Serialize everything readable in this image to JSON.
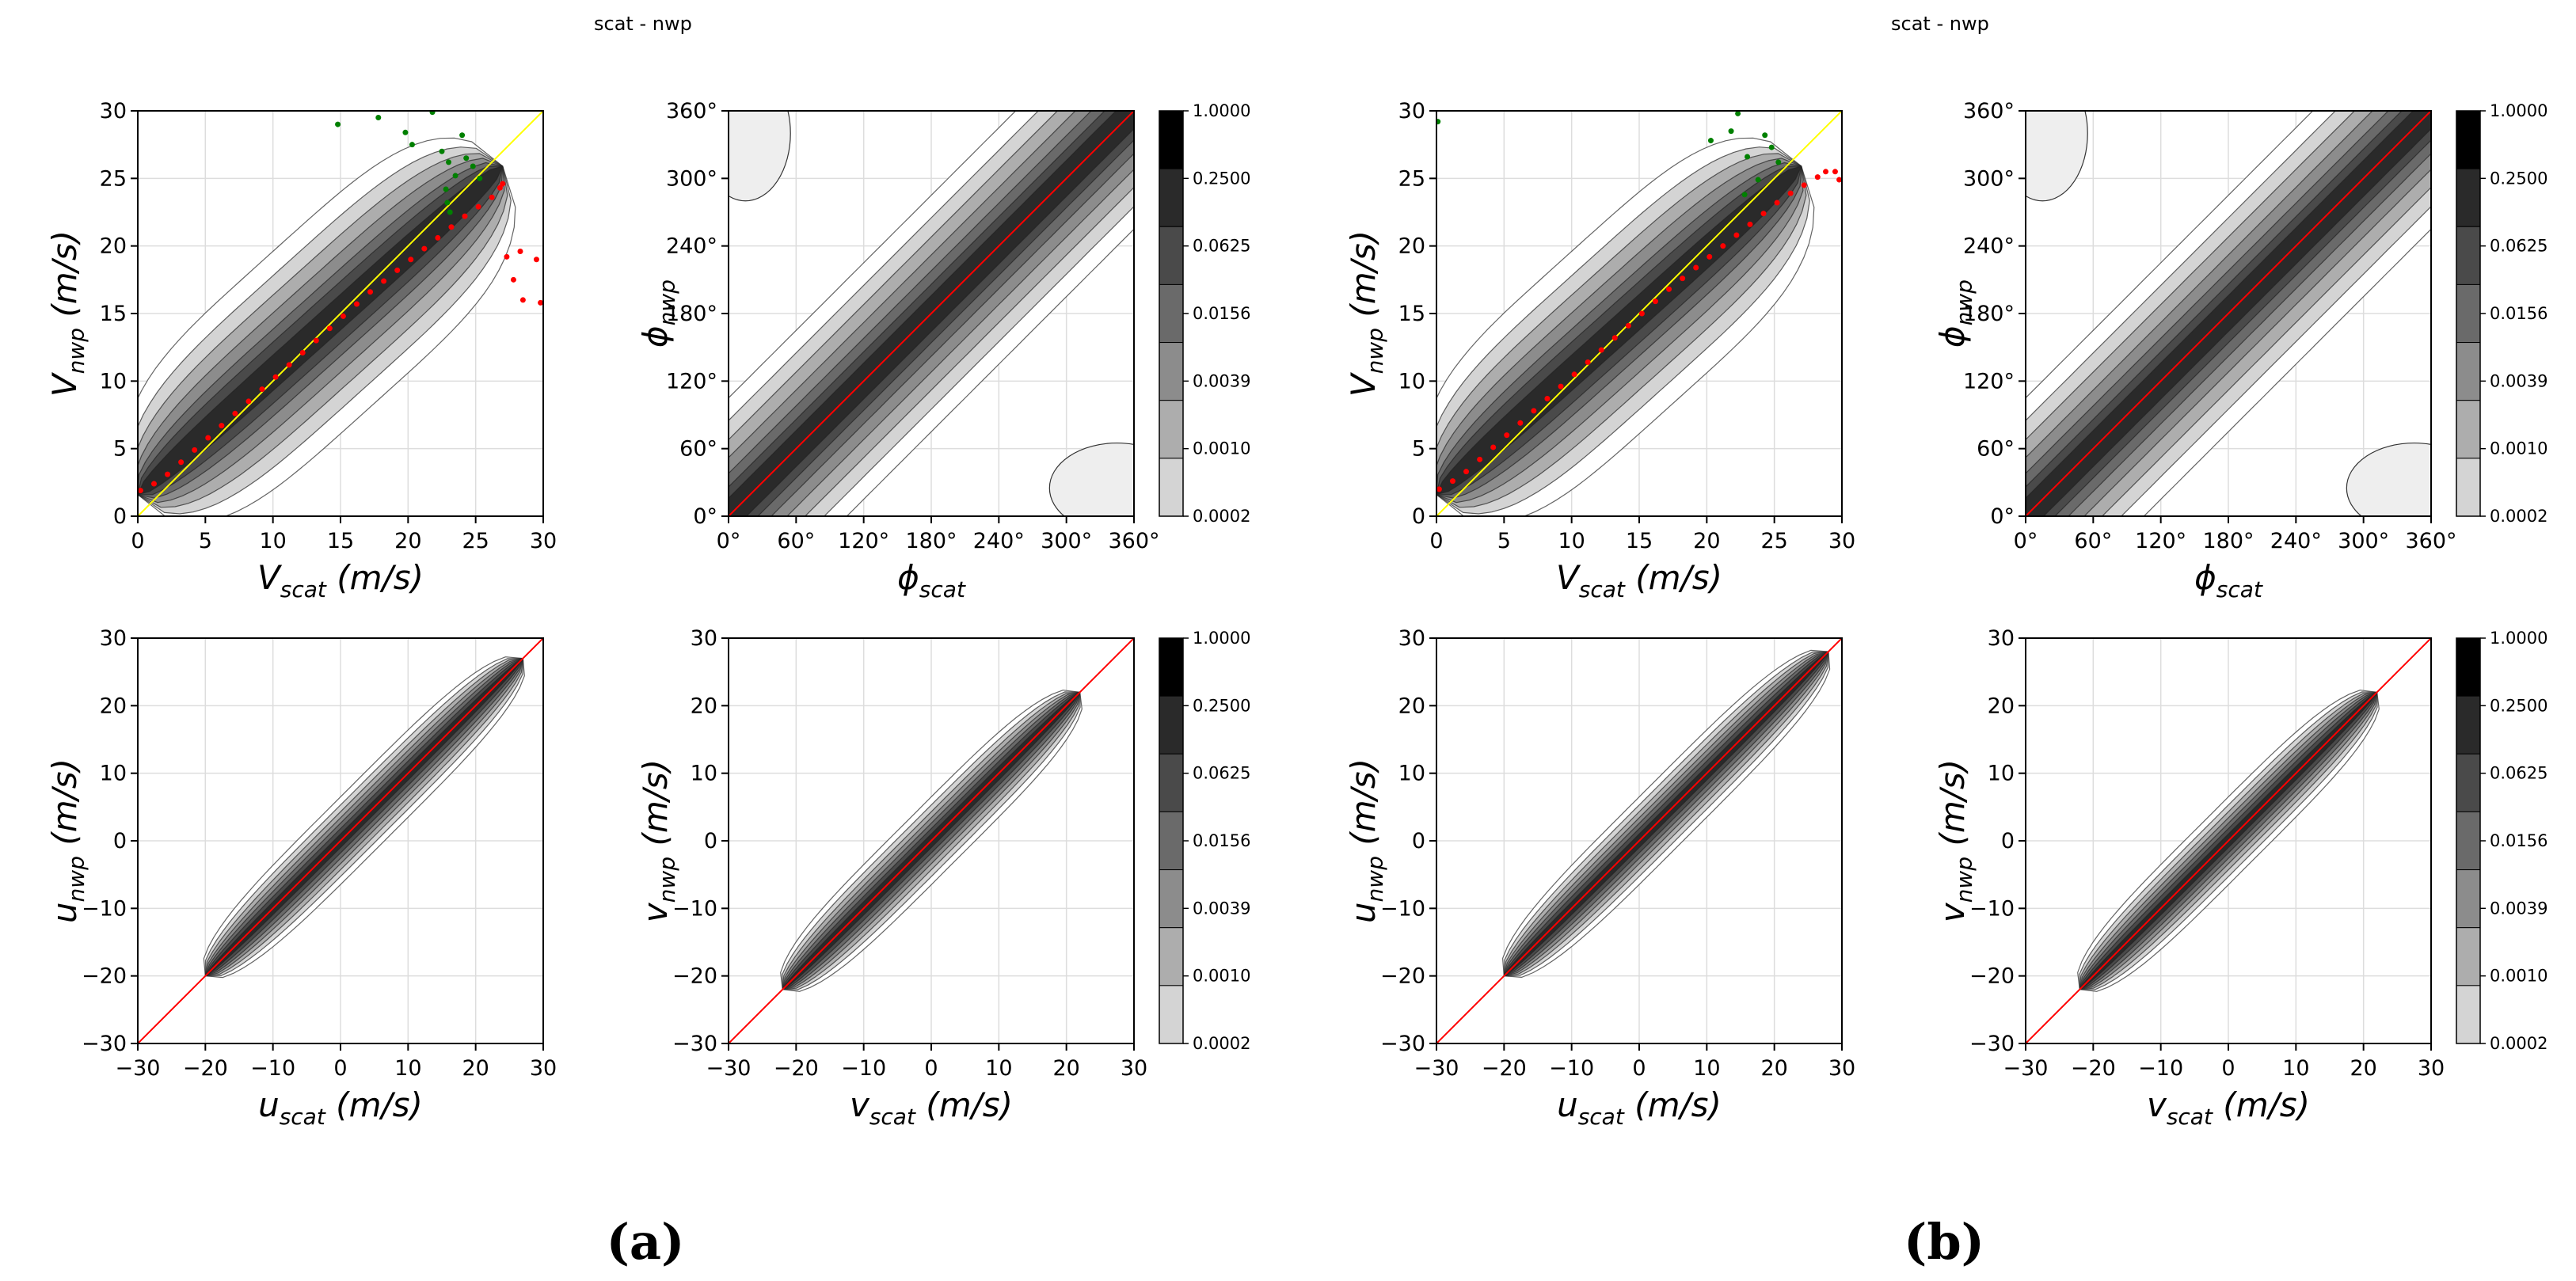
{
  "figures": [
    {
      "title": "scat - nwp",
      "panel_label": "(a)"
    },
    {
      "title": "scat - nwp",
      "panel_label": "(b)"
    }
  ],
  "colorbar": {
    "levels": [
      "1.0000",
      "0.2500",
      "0.0625",
      "0.0156",
      "0.0039",
      "0.0010",
      "0.0002"
    ],
    "shades": [
      "#000000",
      "#2a2a2a",
      "#4a4a4a",
      "#6a6a6a",
      "#8c8c8c",
      "#adadad",
      "#d4d4d4",
      "#ffffff"
    ]
  },
  "colors": {
    "identity_line": "#ff0000",
    "diag_line": "#ffff00",
    "green_dots": "#008000",
    "red_dots": "#ff0000"
  },
  "chart_data": [
    {
      "id": "a-speed",
      "type": "heatmap",
      "kind": "speed",
      "title": "",
      "xlabel_main": "V",
      "xlabel_sub": "scat",
      "xlabel_unit": " (m/s)",
      "ylabel_main": "V",
      "ylabel_sub": "nwp",
      "ylabel_unit": " (m/s)",
      "xlim": [
        0,
        30
      ],
      "ylim": [
        0,
        30
      ],
      "xticks": [
        "0",
        "5",
        "10",
        "15",
        "20",
        "25",
        "30"
      ],
      "yticks": [
        "0",
        "5",
        "10",
        "15",
        "20",
        "25",
        "30"
      ],
      "green_points": [
        [
          14.8,
          29.0
        ],
        [
          17.8,
          29.5
        ],
        [
          19.8,
          28.4
        ],
        [
          20.3,
          27.5
        ],
        [
          21.8,
          29.9
        ],
        [
          22.5,
          27.0
        ],
        [
          23.0,
          26.2
        ],
        [
          23.5,
          25.2
        ],
        [
          24.0,
          28.2
        ],
        [
          24.3,
          26.5
        ],
        [
          24.8,
          25.9
        ],
        [
          25.3,
          25.0
        ],
        [
          22.8,
          24.2
        ],
        [
          22.9,
          23.2
        ],
        [
          23.1,
          22.5
        ]
      ],
      "red_points": [
        [
          0.2,
          1.9
        ],
        [
          1.2,
          2.4
        ],
        [
          2.2,
          3.1
        ],
        [
          3.2,
          4.0
        ],
        [
          4.2,
          4.9
        ],
        [
          5.2,
          5.8
        ],
        [
          6.2,
          6.7
        ],
        [
          7.2,
          7.6
        ],
        [
          8.2,
          8.5
        ],
        [
          9.2,
          9.4
        ],
        [
          10.2,
          10.3
        ],
        [
          11.2,
          11.2
        ],
        [
          12.2,
          12.1
        ],
        [
          13.2,
          13.0
        ],
        [
          14.2,
          13.9
        ],
        [
          15.2,
          14.8
        ],
        [
          16.2,
          15.7
        ],
        [
          17.2,
          16.6
        ],
        [
          18.2,
          17.4
        ],
        [
          19.2,
          18.2
        ],
        [
          20.2,
          19.0
        ],
        [
          21.2,
          19.8
        ],
        [
          22.2,
          20.6
        ],
        [
          23.2,
          21.4
        ],
        [
          24.2,
          22.2
        ],
        [
          25.2,
          22.9
        ],
        [
          26.2,
          23.6
        ],
        [
          26.8,
          24.3
        ],
        [
          27.0,
          24.6
        ],
        [
          27.3,
          19.2
        ],
        [
          27.8,
          17.5
        ],
        [
          28.3,
          19.6
        ],
        [
          28.5,
          16.0
        ],
        [
          29.5,
          19.0
        ],
        [
          29.8,
          15.8
        ]
      ],
      "colorbar": false
    },
    {
      "id": "a-dir",
      "type": "heatmap",
      "kind": "direction",
      "title": "",
      "xlabel_main": "ϕ",
      "xlabel_sub": "scat",
      "xlabel_unit": "",
      "ylabel_main": "ϕ",
      "ylabel_sub": "nwp",
      "ylabel_unit": "",
      "xlim": [
        0,
        360
      ],
      "ylim": [
        0,
        360
      ],
      "xticks": [
        "0°",
        "60°",
        "120°",
        "180°",
        "240°",
        "300°",
        "360°"
      ],
      "yticks": [
        "0°",
        "60°",
        "120°",
        "180°",
        "240°",
        "300°",
        "360°"
      ],
      "colorbar": true
    },
    {
      "id": "b-speed",
      "type": "heatmap",
      "kind": "speed",
      "title": "",
      "xlabel_main": "V",
      "xlabel_sub": "scat",
      "xlabel_unit": " (m/s)",
      "ylabel_main": "V",
      "ylabel_sub": "nwp",
      "ylabel_unit": " (m/s)",
      "xlim": [
        0,
        30
      ],
      "ylim": [
        0,
        30
      ],
      "xticks": [
        "0",
        "5",
        "10",
        "15",
        "20",
        "25",
        "30"
      ],
      "yticks": [
        "0",
        "5",
        "10",
        "15",
        "20",
        "25",
        "30"
      ],
      "green_points": [
        [
          0.1,
          29.2
        ],
        [
          20.3,
          27.8
        ],
        [
          21.8,
          28.5
        ],
        [
          22.3,
          29.8
        ],
        [
          23.0,
          26.6
        ],
        [
          24.3,
          28.2
        ],
        [
          24.8,
          27.3
        ],
        [
          25.3,
          26.2
        ],
        [
          23.8,
          24.9
        ],
        [
          22.8,
          23.8
        ]
      ],
      "red_points": [
        [
          0.2,
          2.0
        ],
        [
          1.2,
          2.6
        ],
        [
          2.2,
          3.3
        ],
        [
          3.2,
          4.2
        ],
        [
          4.2,
          5.1
        ],
        [
          5.2,
          6.0
        ],
        [
          6.2,
          6.9
        ],
        [
          7.2,
          7.8
        ],
        [
          8.2,
          8.7
        ],
        [
          9.2,
          9.6
        ],
        [
          10.2,
          10.5
        ],
        [
          11.2,
          11.4
        ],
        [
          12.2,
          12.3
        ],
        [
          13.2,
          13.2
        ],
        [
          14.2,
          14.1
        ],
        [
          15.2,
          15.0
        ],
        [
          16.2,
          15.9
        ],
        [
          17.2,
          16.8
        ],
        [
          18.2,
          17.6
        ],
        [
          19.2,
          18.4
        ],
        [
          20.2,
          19.2
        ],
        [
          21.2,
          20.0
        ],
        [
          22.2,
          20.8
        ],
        [
          23.2,
          21.6
        ],
        [
          24.2,
          22.4
        ],
        [
          25.2,
          23.2
        ],
        [
          26.2,
          23.9
        ],
        [
          27.2,
          24.5
        ],
        [
          28.2,
          25.1
        ],
        [
          28.8,
          25.5
        ],
        [
          29.5,
          25.5
        ],
        [
          29.8,
          24.9
        ]
      ],
      "colorbar": false
    },
    {
      "id": "b-dir",
      "type": "heatmap",
      "kind": "direction",
      "title": "",
      "xlabel_main": "ϕ",
      "xlabel_sub": "scat",
      "xlabel_unit": "",
      "ylabel_main": "ϕ",
      "ylabel_sub": "nwp",
      "ylabel_unit": "",
      "xlim": [
        0,
        360
      ],
      "ylim": [
        0,
        360
      ],
      "xticks": [
        "0°",
        "60°",
        "120°",
        "180°",
        "240°",
        "300°",
        "360°"
      ],
      "yticks": [
        "0°",
        "60°",
        "120°",
        "180°",
        "240°",
        "300°",
        "360°"
      ],
      "colorbar": true
    },
    {
      "id": "a-u",
      "type": "heatmap",
      "kind": "component",
      "title": "",
      "xlabel_main": "u",
      "xlabel_sub": "scat",
      "xlabel_unit": " (m/s)",
      "ylabel_main": "u",
      "ylabel_sub": "nwp",
      "ylabel_unit": " (m/s)",
      "xlim": [
        -30,
        30
      ],
      "ylim": [
        -30,
        30
      ],
      "xticks": [
        "−30",
        "−20",
        "−10",
        "0",
        "10",
        "20",
        "30"
      ],
      "yticks": [
        "−30",
        "−20",
        "−10",
        "0",
        "10",
        "20",
        "30"
      ],
      "extent": [
        -20,
        27
      ],
      "colorbar": false
    },
    {
      "id": "a-v",
      "type": "heatmap",
      "kind": "component",
      "title": "",
      "xlabel_main": "v",
      "xlabel_sub": "scat",
      "xlabel_unit": " (m/s)",
      "ylabel_main": "v",
      "ylabel_sub": "nwp",
      "ylabel_unit": " (m/s)",
      "xlim": [
        -30,
        30
      ],
      "ylim": [
        -30,
        30
      ],
      "xticks": [
        "−30",
        "−20",
        "−10",
        "0",
        "10",
        "20",
        "30"
      ],
      "yticks": [
        "−30",
        "−20",
        "−10",
        "0",
        "10",
        "20",
        "30"
      ],
      "extent": [
        -22,
        22
      ],
      "colorbar": true
    },
    {
      "id": "b-u",
      "type": "heatmap",
      "kind": "component",
      "title": "",
      "xlabel_main": "u",
      "xlabel_sub": "scat",
      "xlabel_unit": " (m/s)",
      "ylabel_main": "u",
      "ylabel_sub": "nwp",
      "ylabel_unit": " (m/s)",
      "xlim": [
        -30,
        30
      ],
      "ylim": [
        -30,
        30
      ],
      "xticks": [
        "−30",
        "−20",
        "−10",
        "0",
        "10",
        "20",
        "30"
      ],
      "yticks": [
        "−30",
        "−20",
        "−10",
        "0",
        "10",
        "20",
        "30"
      ],
      "extent": [
        -20,
        28
      ],
      "colorbar": false
    },
    {
      "id": "b-v",
      "type": "heatmap",
      "kind": "component",
      "title": "",
      "xlabel_main": "v",
      "xlabel_sub": "scat",
      "xlabel_unit": " (m/s)",
      "ylabel_main": "v",
      "ylabel_sub": "nwp",
      "ylabel_unit": " (m/s)",
      "xlim": [
        -30,
        30
      ],
      "ylim": [
        -30,
        30
      ],
      "xticks": [
        "−30",
        "−20",
        "−10",
        "0",
        "10",
        "20",
        "30"
      ],
      "yticks": [
        "−30",
        "−20",
        "−10",
        "0",
        "10",
        "20",
        "30"
      ],
      "extent": [
        -22,
        22
      ],
      "colorbar": true
    }
  ]
}
